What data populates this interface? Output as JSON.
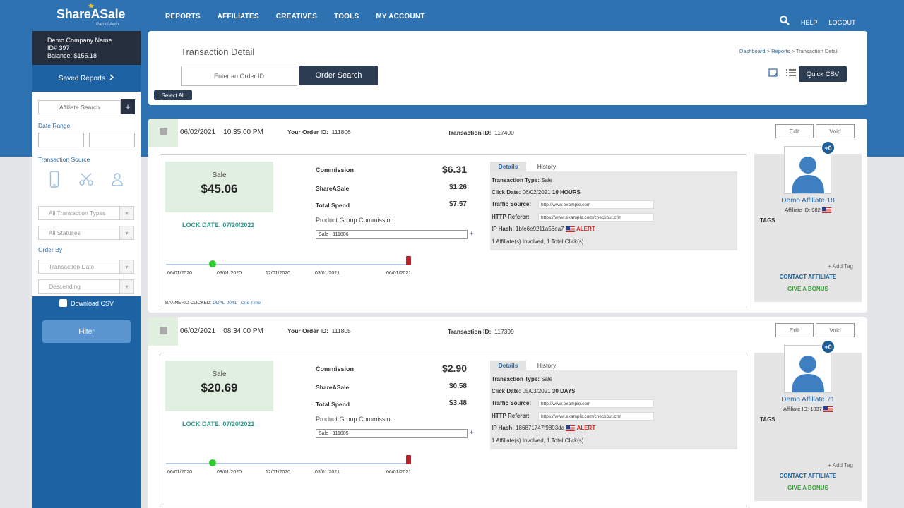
{
  "brand": {
    "name": "ShareASale",
    "sub": "Part of Awin"
  },
  "nav": [
    "REPORTS",
    "AFFILIATES",
    "CREATIVES",
    "TOOLS",
    "MY ACCOUNT"
  ],
  "topright": {
    "help": "HELP",
    "logout": "LOGOUT"
  },
  "account": {
    "company": "Demo Company Name",
    "id": "ID# 397",
    "balance": "Balance: $155.18"
  },
  "sidebar": {
    "saved_reports": "Saved Reports",
    "affiliate_search_placeholder": "Affiliate Search",
    "date_range": "Date Range",
    "transaction_source": "Transaction Source",
    "transaction_types": "All Transaction Types",
    "statuses": "All Statuses",
    "order_by": "Order By",
    "order_field": "Transaction Date",
    "order_dir": "Descending",
    "download_csv": "Download CSV",
    "filter": "Filter"
  },
  "header": {
    "title": "Transaction Detail",
    "breadcrumb": {
      "dashboard": "Dashboard",
      "reports": "Reports",
      "current": "Transaction Detail"
    },
    "order_placeholder": "Enter an Order ID",
    "order_search": "Order Search",
    "select_all": "Select All",
    "quick_csv": "Quick CSV"
  },
  "labels": {
    "your_order_id": "Your Order ID:",
    "transaction_id": "Transaction ID:",
    "edit": "Edit",
    "void": "Void",
    "sale": "Sale",
    "commission": "Commission",
    "shareasale": "ShareASale",
    "total_spend": "Total Spend",
    "product_group_commission": "Product Group Commission",
    "details": "Details",
    "history": "History",
    "transaction_type": "Transaction Type:",
    "click_date": "Click Date:",
    "traffic_source": "Traffic Source:",
    "http_referer": "HTTP Referer:",
    "ip_hash": "IP Hash:",
    "alert": "ALERT",
    "tags": "TAGS",
    "add_tag": "+ Add Tag",
    "contact_affiliate": "CONTACT AFFILIATE",
    "give_bonus": "GIVE A BONUS",
    "banner_clicked": "BANNERID CLICKED:"
  },
  "transactions": [
    {
      "date": "06/02/2021",
      "time": "10:35:00 PM",
      "order_id": "111806",
      "transaction_id": "117400",
      "sale_amount": "$45.06",
      "lock_date": "LOCK DATE: 07/20/2021",
      "commission": "$6.31",
      "shareasale": "$1.26",
      "total_spend": "$7.57",
      "pgc_value": "Sale - 111806",
      "timeline_ticks": [
        "06/01/2020",
        "09/01/2020",
        "12/01/2020",
        "03/01/2021",
        "06/01/2021"
      ],
      "banner": "DDAL-2041",
      "banner_type": "One Time",
      "tx_type": "Sale",
      "click_date": "06/02/2021",
      "click_ago": "10 HOURS",
      "traffic_source": "http://www.example.com",
      "http_referer": "https://www.example.com/checkout.cfm",
      "ip_hash": "1bfe6e9211a56ea7",
      "involved": "1 Affiliate(s) Involved, 1 Total Click(s)",
      "affiliate_name": "Demo Affiliate 18",
      "affiliate_id": "Affiliate ID: 982",
      "badge": "+0"
    },
    {
      "date": "06/02/2021",
      "time": "08:34:00 PM",
      "order_id": "111805",
      "transaction_id": "117399",
      "sale_amount": "$20.69",
      "lock_date": "LOCK DATE: 07/20/2021",
      "commission": "$2.90",
      "shareasale": "$0.58",
      "total_spend": "$3.48",
      "pgc_value": "Sale - 111805",
      "timeline_ticks": [
        "06/01/2020",
        "09/01/2020",
        "12/01/2020",
        "03/01/2021",
        "06/01/2021"
      ],
      "tx_type": "Sale",
      "click_date": "05/03/2021",
      "click_ago": "30 DAYS",
      "traffic_source": "http://www.example.com",
      "http_referer": "https://www.example.com/checkout.cfm",
      "ip_hash": "186871747f9893da",
      "involved": "1 Affiliate(s) Involved, 1 Total Click(s)",
      "affiliate_name": "Demo Affiliate 71",
      "affiliate_id": "Affiliate ID: 1037",
      "badge": "+0"
    }
  ]
}
